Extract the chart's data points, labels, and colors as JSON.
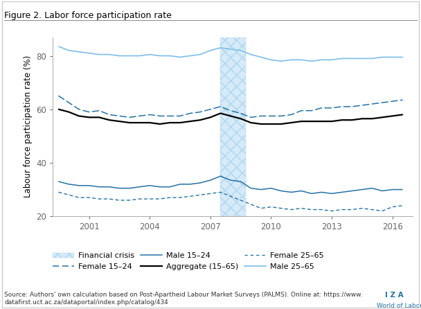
{
  "title": "Figure 2. Labor force participation rate",
  "ylabel": "Labour force participation rate (%)",
  "crisis_start": 2007.5,
  "crisis_end": 2008.75,
  "source_text": "Source: Authors' own calculation based on Post-Apartheid Labour Market Surveys (PALMS). Online at: https://www.\ndatafirst.uct.ac.za/dataportal/index.php/catalog/434",
  "years": [
    1999.5,
    2000.0,
    2000.5,
    2001.0,
    2001.5,
    2002.0,
    2002.5,
    2003.0,
    2003.5,
    2004.0,
    2004.5,
    2005.0,
    2005.5,
    2006.0,
    2006.5,
    2007.0,
    2007.5,
    2008.0,
    2008.5,
    2009.0,
    2009.5,
    2010.0,
    2010.5,
    2011.0,
    2011.5,
    2012.0,
    2012.5,
    2013.0,
    2013.5,
    2014.0,
    2014.5,
    2015.0,
    2015.5,
    2016.0,
    2016.5
  ],
  "male_25_65": [
    83.5,
    82.0,
    81.5,
    81.0,
    80.5,
    80.5,
    80.0,
    80.0,
    80.0,
    80.5,
    80.0,
    80.0,
    79.5,
    80.0,
    80.5,
    82.0,
    83.0,
    82.5,
    82.0,
    80.5,
    79.5,
    78.5,
    78.0,
    78.5,
    78.5,
    78.0,
    78.5,
    78.5,
    79.0,
    79.0,
    79.0,
    79.0,
    79.5,
    79.5,
    79.5
  ],
  "female_25_65": [
    65.0,
    62.5,
    60.0,
    59.0,
    59.5,
    58.0,
    57.5,
    57.0,
    57.5,
    58.0,
    57.5,
    57.5,
    57.5,
    58.5,
    59.0,
    60.0,
    61.0,
    59.5,
    58.5,
    57.0,
    57.5,
    57.5,
    57.5,
    58.0,
    59.5,
    59.5,
    60.5,
    60.5,
    61.0,
    61.0,
    61.5,
    62.0,
    62.5,
    63.0,
    63.5
  ],
  "aggregate": [
    60.0,
    59.0,
    57.5,
    57.0,
    57.0,
    56.0,
    55.5,
    55.0,
    55.0,
    55.0,
    54.5,
    55.0,
    55.0,
    55.5,
    56.0,
    57.0,
    58.5,
    57.5,
    56.5,
    55.0,
    54.5,
    54.5,
    54.5,
    55.0,
    55.5,
    55.5,
    55.5,
    55.5,
    56.0,
    56.0,
    56.5,
    56.5,
    57.0,
    57.5,
    58.0
  ],
  "male_15_24": [
    33.0,
    32.0,
    31.5,
    31.5,
    31.0,
    31.0,
    30.5,
    30.5,
    31.0,
    31.5,
    31.0,
    31.0,
    32.0,
    32.0,
    32.5,
    33.5,
    35.0,
    33.5,
    33.0,
    30.5,
    30.0,
    30.5,
    29.5,
    29.0,
    29.5,
    28.5,
    29.0,
    28.5,
    29.0,
    29.5,
    30.0,
    30.5,
    29.5,
    30.0,
    30.0
  ],
  "female_15_24": [
    29.0,
    28.0,
    27.0,
    27.0,
    26.5,
    26.5,
    26.0,
    26.0,
    26.5,
    26.5,
    26.5,
    27.0,
    27.0,
    27.5,
    28.0,
    28.5,
    29.0,
    27.5,
    26.0,
    24.5,
    23.0,
    23.5,
    23.0,
    22.5,
    23.0,
    22.5,
    22.5,
    22.0,
    22.5,
    22.5,
    23.0,
    22.5,
    22.0,
    23.5,
    24.0
  ],
  "dark_blue": "#2471a3",
  "light_blue": "#85c1e9",
  "black": "#000000",
  "crisis_face": "#d6eaf8",
  "crisis_edge": "#aed6f1",
  "ylim": [
    20,
    87
  ],
  "yticks": [
    20,
    40,
    60,
    80
  ],
  "xticks": [
    2001,
    2004,
    2007,
    2010,
    2013,
    2016
  ],
  "xlim_left": 1999.2,
  "xlim_right": 2017.0
}
